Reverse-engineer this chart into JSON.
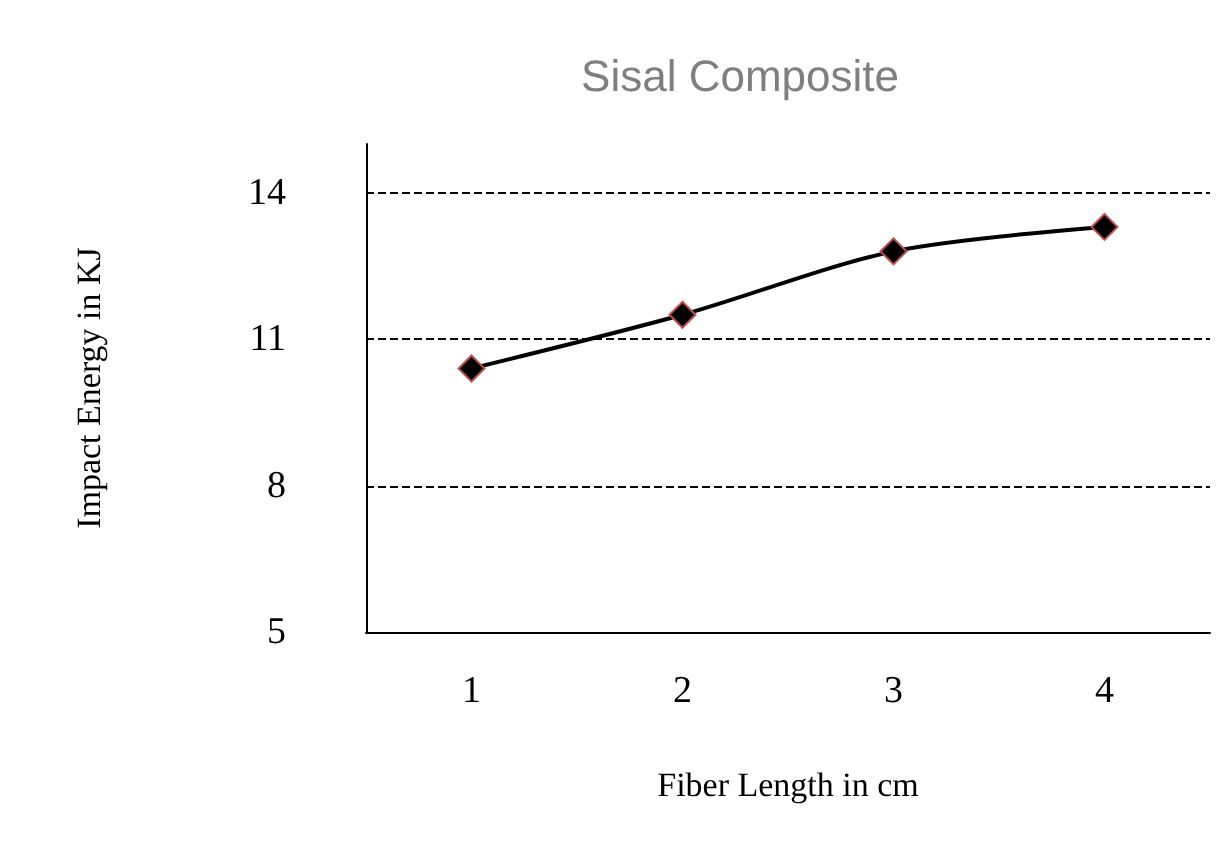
{
  "chart_data": {
    "type": "line",
    "title": "Sisal Composite",
    "xlabel": "Fiber Length in cm",
    "ylabel": "Impact Energy in KJ",
    "categories": [
      "1",
      "2",
      "3",
      "4"
    ],
    "series": [
      {
        "color": "#000000",
        "values": [
          10.4,
          11.5,
          12.8,
          13.3
        ]
      }
    ],
    "ylim": [
      5,
      15
    ],
    "yticks": [
      5,
      8,
      11,
      14
    ],
    "grid": "y",
    "marker": "diamond",
    "line_style": "solid"
  }
}
